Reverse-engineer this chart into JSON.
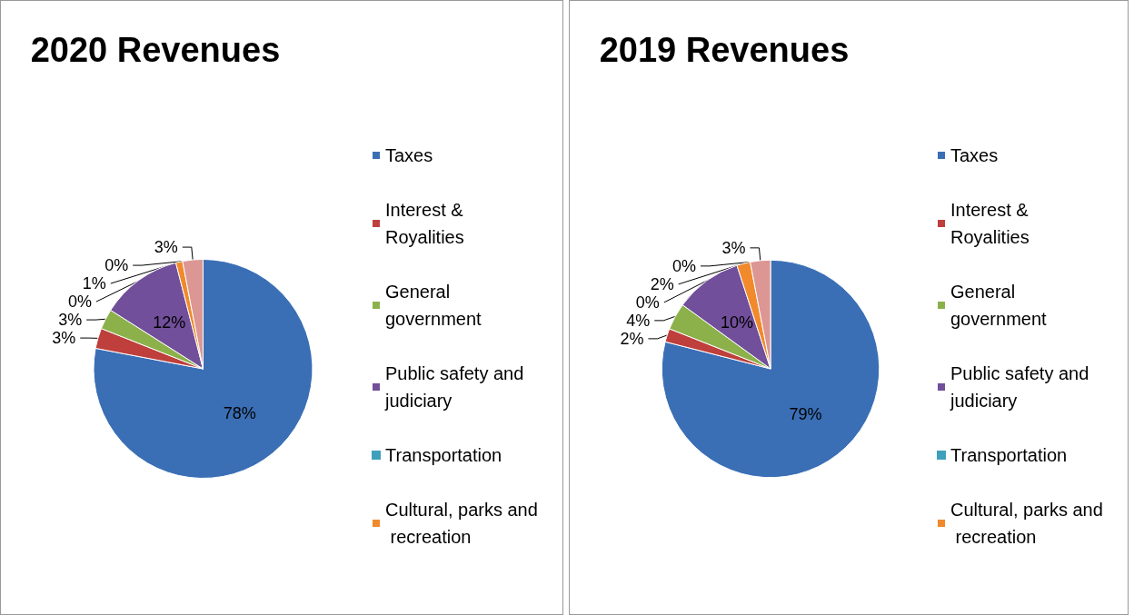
{
  "chart_data": [
    {
      "type": "pie",
      "title": "2020 Revenues",
      "categories": [
        "Taxes",
        "Interest & Royalities",
        "General government",
        "Public safety and judiciary",
        "Transportation",
        "Cultural, parks and recreation",
        null,
        null
      ],
      "values": [
        78,
        3,
        3,
        12,
        0,
        1,
        0,
        3
      ],
      "value_labels": [
        "78%",
        "3%",
        "3%",
        "12%",
        "0%",
        "1%",
        "0%",
        "3%"
      ],
      "colors": [
        "#3a6fb5",
        "#be3f3c",
        "#8cb14a",
        "#714f9a",
        "#3fa0bc",
        "#f08a2c",
        "#a9bde0",
        "#dc9694"
      ],
      "legend": "right"
    },
    {
      "type": "pie",
      "title": "2019 Revenues",
      "categories": [
        "Taxes",
        "Interest & Royalities",
        "General government",
        "Public safety and judiciary",
        "Transportation",
        "Cultural, parks and recreation",
        null,
        null
      ],
      "values": [
        79,
        2,
        4,
        10,
        0,
        2,
        0,
        3
      ],
      "value_labels": [
        "79%",
        "2%",
        "4%",
        "10%",
        "0%",
        "2%",
        "0%",
        "3%"
      ],
      "colors": [
        "#3a6fb5",
        "#be3f3c",
        "#8cb14a",
        "#714f9a",
        "#3fa0bc",
        "#f08a2c",
        "#a9bde0",
        "#dc9694"
      ],
      "legend": "right"
    }
  ]
}
